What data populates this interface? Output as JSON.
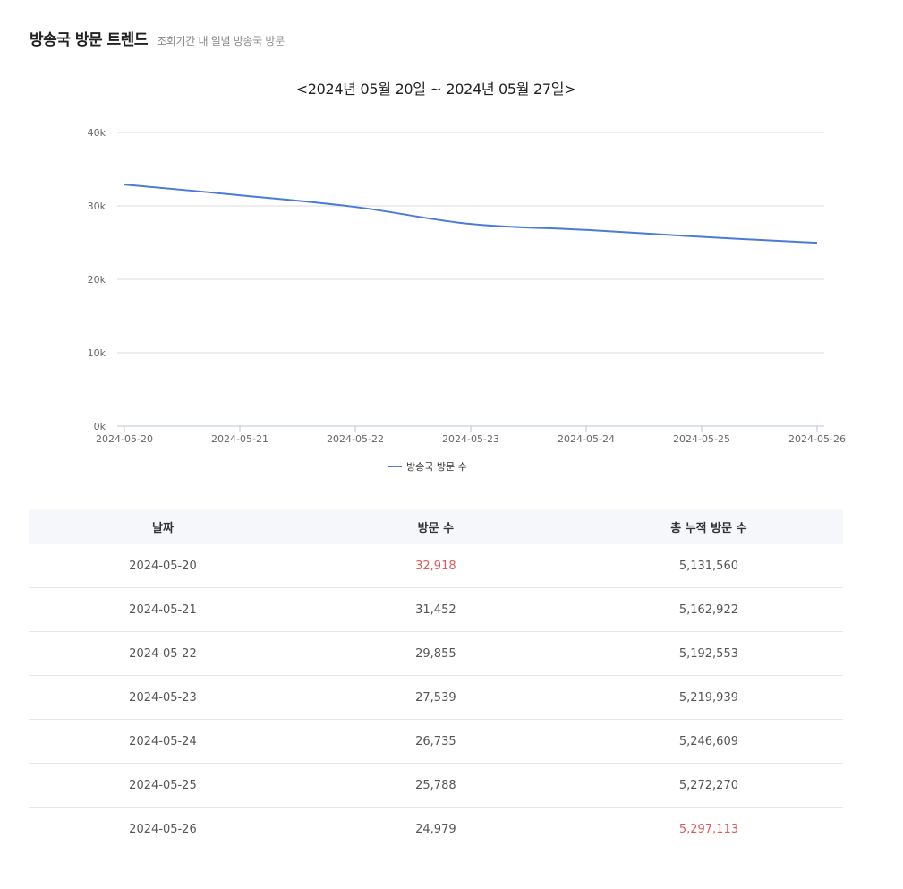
{
  "header": {
    "title": "방송국 방문 트렌드",
    "subtitle": "조회기간 내 일별 방송국 방문"
  },
  "chart_title": "<2024년 05월 20일 ~ 2024년 05월 27일>",
  "colors": {
    "line": "#4a7bd6",
    "highlight": "#e05a5a",
    "grid": "#dddddd",
    "header_bg": "#f6f7fb"
  },
  "chart_data": {
    "type": "line",
    "title": "<2024년 05월 20일 ~ 2024년 05월 27일>",
    "xlabel": "",
    "ylabel": "",
    "categories": [
      "2024-05-20",
      "2024-05-21",
      "2024-05-22",
      "2024-05-23",
      "2024-05-24",
      "2024-05-25",
      "2024-05-26"
    ],
    "series": [
      {
        "name": "방송국 방문 수",
        "values": [
          32918,
          31452,
          29855,
          27539,
          26735,
          25788,
          24979
        ]
      }
    ],
    "ylim": [
      0,
      40000
    ],
    "yticks": [
      "0k",
      "10k",
      "20k",
      "30k",
      "40k"
    ],
    "grid": true,
    "legend_position": "bottom"
  },
  "legend": {
    "label": "방송국 방문 수"
  },
  "table": {
    "headers": [
      "날짜",
      "방문 수",
      "총 누적 방문 수"
    ],
    "rows": [
      {
        "date": "2024-05-20",
        "visits": "32,918",
        "total": "5,131,560"
      },
      {
        "date": "2024-05-21",
        "visits": "31,452",
        "total": "5,162,922"
      },
      {
        "date": "2024-05-22",
        "visits": "29,855",
        "total": "5,192,553"
      },
      {
        "date": "2024-05-23",
        "visits": "27,539",
        "total": "5,219,939"
      },
      {
        "date": "2024-05-24",
        "visits": "26,735",
        "total": "5,246,609"
      },
      {
        "date": "2024-05-25",
        "visits": "25,788",
        "total": "5,272,270"
      },
      {
        "date": "2024-05-26",
        "visits": "24,979",
        "total": "5,297,113"
      }
    ]
  }
}
